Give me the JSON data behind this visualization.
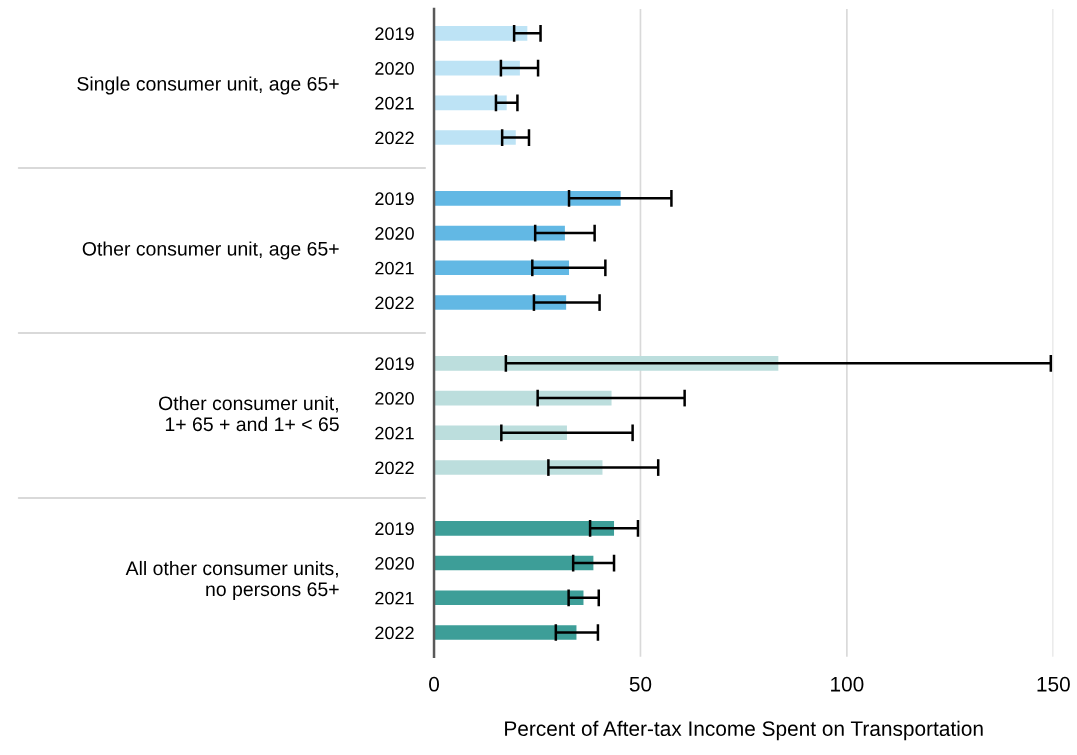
{
  "chart_data": {
    "type": "bar",
    "orientation": "horizontal",
    "xlabel": "Percent of After-tax Income Spent on Transportation",
    "categories": [
      "2019",
      "2020",
      "2021",
      "2022",
      "2019",
      "2020",
      "2021",
      "2022",
      "2019",
      "2020",
      "2021",
      "2022",
      "2019",
      "2020",
      "2021",
      "2022"
    ],
    "values": [
      22.6,
      20.8,
      17.6,
      19.8,
      45.2,
      31.7,
      32.7,
      32.0,
      83.4,
      43.0,
      32.2,
      40.8,
      43.6,
      38.6,
      36.2,
      34.5
    ],
    "colors": [
      "#bde3f5",
      "#bde3f5",
      "#bde3f5",
      "#bde3f5",
      "#62b8e4",
      "#62b8e4",
      "#62b8e4",
      "#62b8e4",
      "#bcdedd",
      "#bcdedd",
      "#bcdedd",
      "#bcdedd",
      "#3d9e98",
      "#3d9e98",
      "#3d9e98",
      "#3d9e98"
    ],
    "errors": [
      [
        19.4,
        25.8
      ],
      [
        16.2,
        25.2
      ],
      [
        15.0,
        20.2
      ],
      [
        16.5,
        23.0
      ],
      [
        32.7,
        57.5
      ],
      [
        24.5,
        38.9
      ],
      [
        23.8,
        41.5
      ],
      [
        24.2,
        40.1
      ],
      [
        17.4,
        149.4
      ],
      [
        25.1,
        60.7
      ],
      [
        16.3,
        48.1
      ],
      [
        27.7,
        54.3
      ],
      [
        37.8,
        49.4
      ],
      [
        33.7,
        43.6
      ],
      [
        32.6,
        39.9
      ],
      [
        29.5,
        39.7
      ]
    ],
    "annotations": [
      "Single consumer unit, age 65+",
      "Other consumer unit, age 65+",
      "Other consumer unit,\n1+ 65 + and 1+ < 65",
      "All other consumer units,\nno persons 65+"
    ],
    "xlim": [
      0,
      150
    ],
    "xticks": [
      0,
      50,
      100,
      150
    ],
    "grid": "x"
  }
}
